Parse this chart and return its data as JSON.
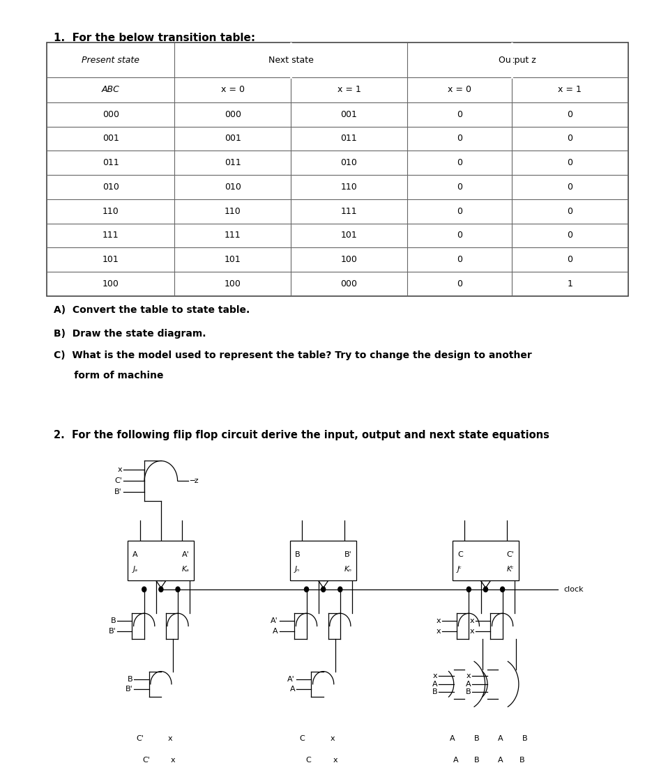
{
  "title1": "1.  For the below transition table:",
  "title2": "2.  For the following flip flop circuit derive the input, output and next state equations",
  "table_rows": [
    [
      "000",
      "000",
      "001",
      "0",
      "0"
    ],
    [
      "001",
      "001",
      "011",
      "0",
      "0"
    ],
    [
      "011",
      "011",
      "010",
      "0",
      "0"
    ],
    [
      "010",
      "010",
      "110",
      "0",
      "0"
    ],
    [
      "110",
      "110",
      "111",
      "0",
      "0"
    ],
    [
      "111",
      "111",
      "101",
      "0",
      "0"
    ],
    [
      "101",
      "101",
      "100",
      "0",
      "0"
    ],
    [
      "100",
      "100",
      "000",
      "0",
      "1"
    ]
  ],
  "q_a": "A)  Convert the table to state table.",
  "q_b": "B)  Draw the state diagram.",
  "q_c1": "C)  What is the model used to represent the table? Try to change the design to another",
  "q_c2": "      form of machine",
  "bg_color": "#ffffff"
}
